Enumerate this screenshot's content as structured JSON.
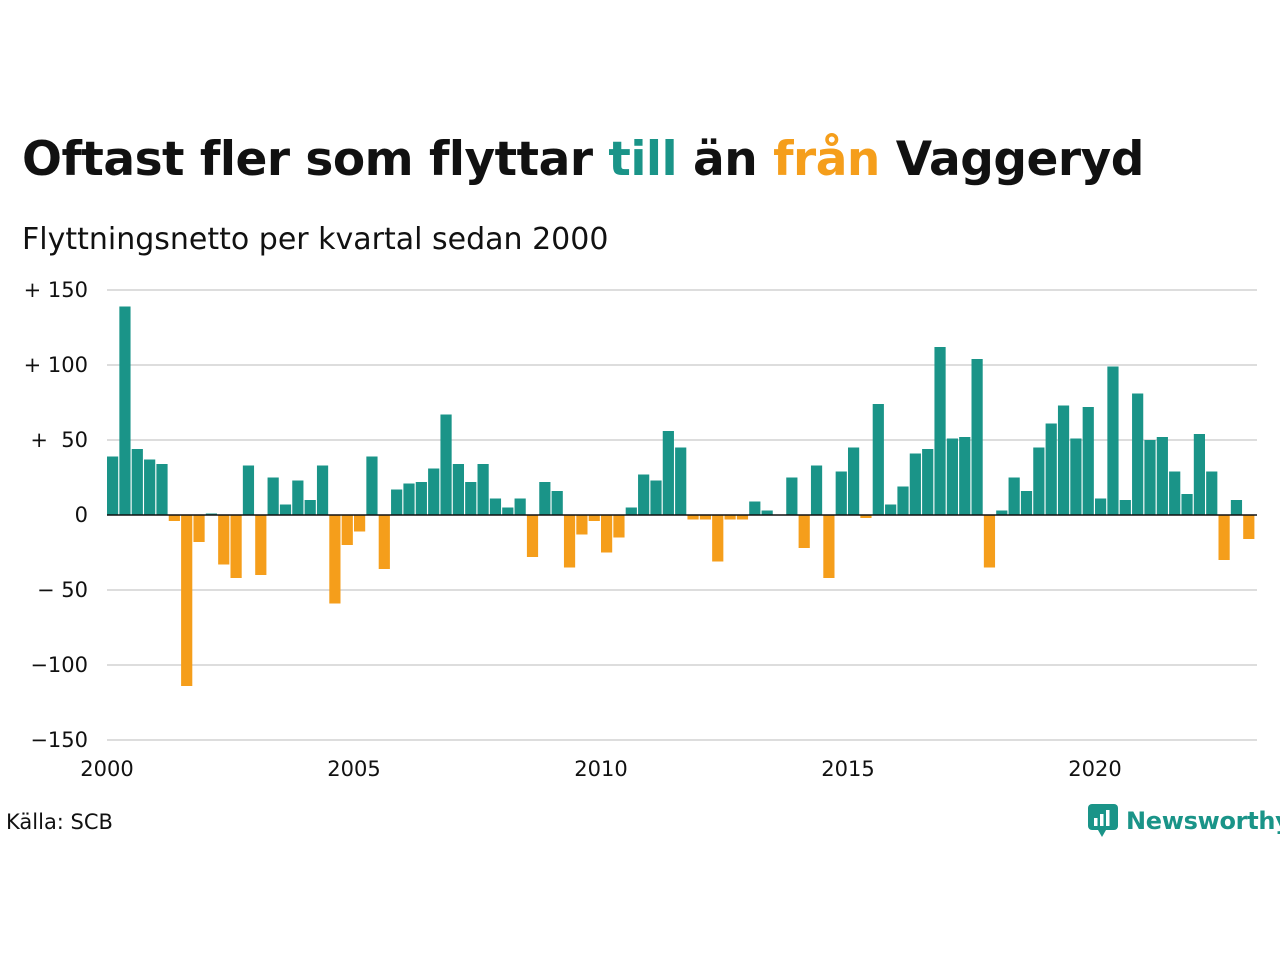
{
  "title": {
    "part1": "Oftast fler som flyttar ",
    "pos_word": "till",
    "part2": " än ",
    "neg_word": "från",
    "part3": " Vaggeryd"
  },
  "subtitle": "Flyttningsnetto per kvartal sedan 2000",
  "source": "Källa: SCB",
  "brand": "Newsworthy",
  "colors": {
    "positive": "#1a9488",
    "negative": "#f59e1b",
    "grid": "#dddddd",
    "brand": "#1a9488"
  },
  "chart_data": {
    "type": "bar",
    "title": "Oftast fler som flyttar till än från Vaggeryd",
    "subtitle": "Flyttningsnetto per kvartal sedan 2000",
    "xlabel": "",
    "ylabel": "",
    "ylim": [
      -150,
      150
    ],
    "y_ticks": [
      {
        "value": 150,
        "label": "+ 150"
      },
      {
        "value": 100,
        "label": "+ 100"
      },
      {
        "value": 50,
        "label": "+  50"
      },
      {
        "value": 0,
        "label": "0"
      },
      {
        "value": -50,
        "label": "− 50"
      },
      {
        "value": -100,
        "label": "−100"
      },
      {
        "value": -150,
        "label": "−150"
      }
    ],
    "x_ticks": [
      "2000",
      "2005",
      "2010",
      "2015",
      "2020"
    ],
    "x_tick_years": [
      2000,
      2005,
      2010,
      2015,
      2020
    ],
    "start_year": 2000,
    "grid": true,
    "legend": "none",
    "values": [
      39,
      139,
      44,
      37,
      34,
      -4,
      -114,
      -18,
      1,
      -33,
      -42,
      33,
      -40,
      25,
      7,
      23,
      10,
      33,
      -59,
      -20,
      -11,
      39,
      -36,
      17,
      21,
      22,
      31,
      67,
      34,
      22,
      34,
      11,
      5,
      11,
      -28,
      22,
      16,
      -35,
      -13,
      -4,
      -25,
      -15,
      5,
      27,
      23,
      56,
      45,
      -3,
      -3,
      -31,
      -3,
      -3,
      9,
      3,
      0,
      25,
      -22,
      33,
      -42,
      29,
      45,
      -2,
      74,
      7,
      19,
      41,
      44,
      112,
      51,
      52,
      104,
      -35,
      3,
      25,
      16,
      45,
      61,
      73,
      51,
      72,
      11,
      99,
      10,
      81,
      50,
      52,
      29,
      14,
      54,
      29,
      -30,
      10,
      -16
    ]
  }
}
